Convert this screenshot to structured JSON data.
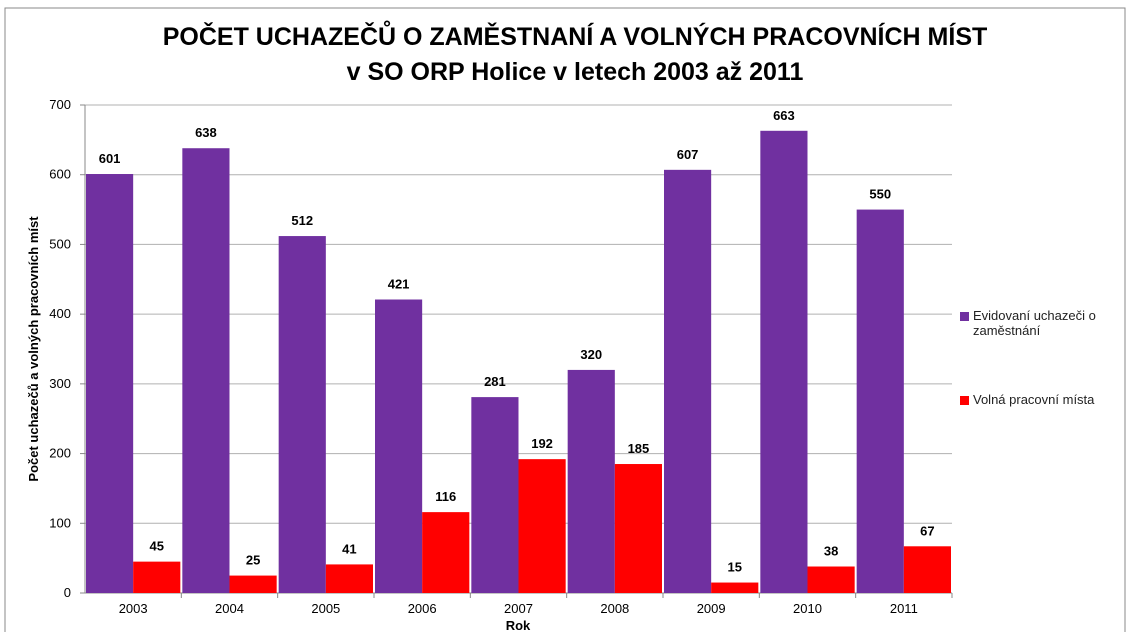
{
  "chart_data": {
    "type": "bar",
    "title": "POČET UCHAZEČŮ O ZAMĚSTNANÍ A VOLNÝCH PRACOVNÍCH MÍST",
    "subtitle": "v SO ORP Holice v letech 2003 až 2011",
    "x_label": "Rok",
    "y_label": "Počet uchazečů a volných pracovních míst",
    "categories": [
      "2003",
      "2004",
      "2005",
      "2006",
      "2007",
      "2008",
      "2009",
      "2010",
      "2011"
    ],
    "series": [
      {
        "name": "Evidovaní uchazeči o zaměstnání",
        "color": "#7030a0",
        "values": [
          601,
          638,
          512,
          421,
          281,
          320,
          607,
          663,
          550
        ]
      },
      {
        "name": "Volná pracovní místa",
        "color": "#ff0000",
        "values": [
          45,
          25,
          41,
          116,
          192,
          185,
          15,
          38,
          67
        ]
      }
    ],
    "ylim": [
      0,
      700
    ],
    "yticks": [
      0,
      100,
      200,
      300,
      400,
      500,
      600,
      700
    ],
    "grid": true,
    "legend": "right"
  }
}
